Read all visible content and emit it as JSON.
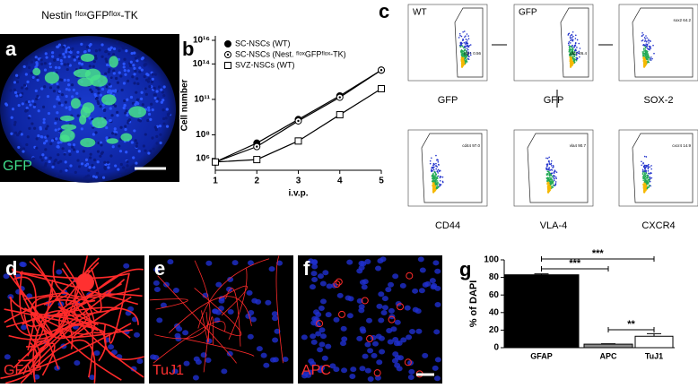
{
  "panel_a": {
    "letter": "a",
    "title": "Nestin ᶠˡᵒˣGFPᶠˡᵒˣ-TK",
    "label": "GFP"
  },
  "panel_b": {
    "letter": "b"
  },
  "panel_c": {
    "letter": "c",
    "plots": [
      {
        "inner": "WT",
        "gate": "gfp+ 0.56",
        "xlabel": "GFP"
      },
      {
        "inner": "GFP",
        "gate": "gfp+ 26.4",
        "xlabel": "GFP"
      },
      {
        "gate": "sox2 64.2",
        "xlabel": "SOX-2"
      },
      {
        "gate": "cd44 97.0",
        "xlabel": "CD44"
      },
      {
        "gate": "vla4 90.7",
        "xlabel": "VLA-4"
      },
      {
        "gate": "cxcr4 14.9",
        "xlabel": "CXCR4"
      }
    ]
  },
  "panel_d": {
    "letter": "d",
    "label": "GFAP"
  },
  "panel_e": {
    "letter": "e",
    "label": "TuJ1"
  },
  "panel_f": {
    "letter": "f",
    "label": "APC"
  },
  "panel_g": {
    "letter": "g"
  },
  "chart_data": [
    {
      "type": "line",
      "xlabel": "i.v.p.",
      "ylabel": "Cell number",
      "log_y": true,
      "x": [
        1,
        2,
        3,
        4,
        5
      ],
      "xlim": [
        1,
        5
      ],
      "xticks": [
        1,
        2,
        3,
        4,
        5
      ],
      "ylim": [
        100000,
        10000000000000000
      ],
      "yticks": [
        {
          "value": 1000000,
          "label": "10⁶"
        },
        {
          "value": 100000000,
          "label": "10⁸"
        },
        {
          "value": 100000000000,
          "label": "10¹¹"
        },
        {
          "value": 100000000000000,
          "label": "10¹⁴"
        },
        {
          "value": 10000000000000000,
          "label": "10¹⁶"
        }
      ],
      "series": [
        {
          "name": "SC-NSCs (WT)",
          "color": "#000000",
          "marker": "circle-filled",
          "values": [
            500000,
            20000000,
            2000000000,
            200000000000,
            30000000000000
          ]
        },
        {
          "name": "SC-NSCs (Nest. ᶠˡᵒˣGFPᶠˡᵒˣ-TK)",
          "color": "#000000",
          "marker": "circle-open",
          "values": [
            500000,
            10000000,
            1500000000,
            150000000000,
            30000000000000
          ]
        },
        {
          "name": "SVZ-NSCs (WT)",
          "color": "#000000",
          "marker": "square-open",
          "values": [
            500000,
            800000,
            30000000,
            5000000000,
            800000000000
          ]
        }
      ]
    },
    {
      "type": "bar",
      "ylabel": "% of DAPI",
      "categories": [
        "GFAP",
        "APC",
        "TuJ1"
      ],
      "values": [
        83,
        4,
        13
      ],
      "errors": [
        1,
        0.5,
        3
      ],
      "colors": [
        "#000000",
        "#888888",
        "#ffffff"
      ],
      "ylim": [
        0,
        100
      ],
      "yticks": [
        0,
        20,
        40,
        60,
        80,
        100
      ],
      "annotations": [
        "***",
        "***",
        "**"
      ]
    }
  ]
}
